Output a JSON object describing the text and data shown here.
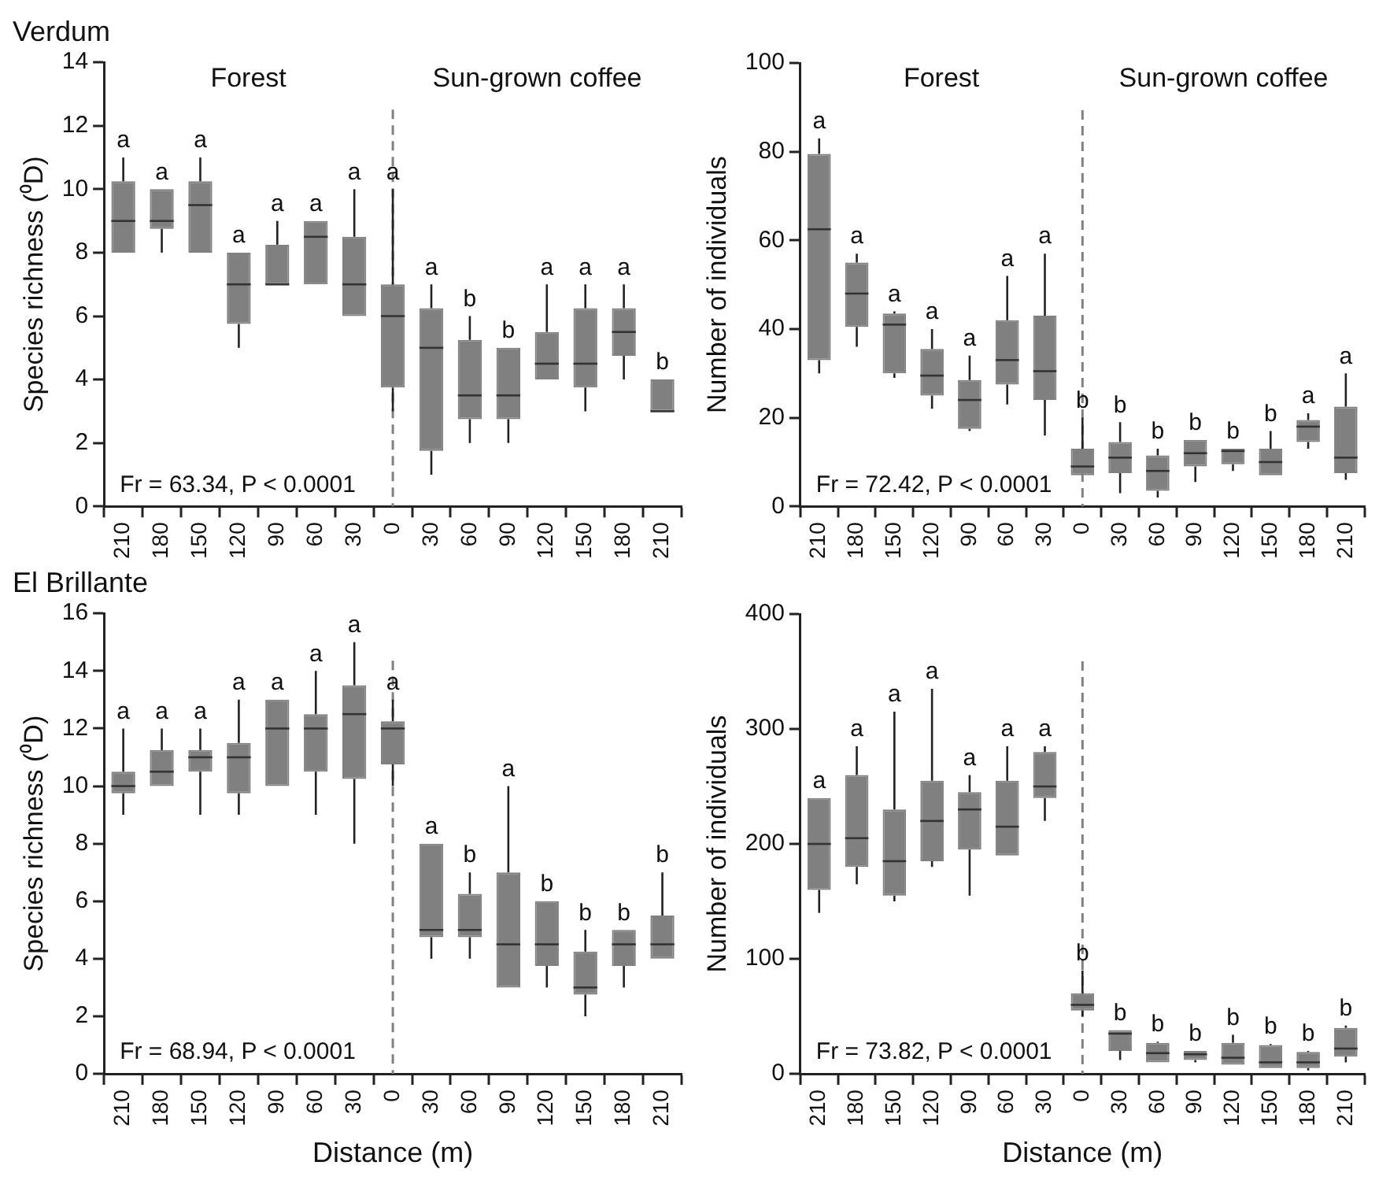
{
  "chart_data": [
    {
      "type": "box",
      "title": "Verdum",
      "ylabel": "Species richness (⁰D)",
      "color": "#808080",
      "categories": [
        "210",
        "180",
        "150",
        "120",
        "90",
        "60",
        "30",
        "0",
        "30",
        "60",
        "90",
        "120",
        "150",
        "180",
        "210"
      ],
      "boxes": [
        {
          "low": 8,
          "q1": 8,
          "median": 9,
          "q3": 10.25,
          "high": 11
        },
        {
          "low": 8,
          "q1": 8.75,
          "median": 9,
          "q3": 10,
          "high": 10
        },
        {
          "low": 8,
          "q1": 8,
          "median": 9.5,
          "q3": 10.25,
          "high": 11
        },
        {
          "low": 5,
          "q1": 5.75,
          "median": 7,
          "q3": 8,
          "high": 8
        },
        {
          "low": 7,
          "q1": 7,
          "median": 7,
          "q3": 8.25,
          "high": 9
        },
        {
          "low": 7,
          "q1": 7,
          "median": 8.5,
          "q3": 9,
          "high": 9
        },
        {
          "low": 6,
          "q1": 6,
          "median": 7,
          "q3": 8.5,
          "high": 10
        },
        {
          "low": 3,
          "q1": 3.75,
          "median": 6,
          "q3": 7,
          "high": 10
        },
        {
          "low": 1,
          "q1": 1.75,
          "median": 5,
          "q3": 6.25,
          "high": 7
        },
        {
          "low": 2,
          "q1": 2.75,
          "median": 3.5,
          "q3": 5.25,
          "high": 6
        },
        {
          "low": 2,
          "q1": 2.75,
          "median": 3.5,
          "q3": 5,
          "high": 5
        },
        {
          "low": 4,
          "q1": 4,
          "median": 4.5,
          "q3": 5.5,
          "high": 7
        },
        {
          "low": 3,
          "q1": 3.75,
          "median": 4.5,
          "q3": 6.25,
          "high": 7
        },
        {
          "low": 4,
          "q1": 4.75,
          "median": 5.5,
          "q3": 6.25,
          "high": 7
        },
        {
          "low": 3,
          "q1": 3,
          "median": 3,
          "q3": 4,
          "high": 4
        }
      ],
      "value_labels": [
        "a",
        "a",
        "a",
        "a",
        "a",
        "a",
        "a",
        "a",
        "a",
        "b",
        "b",
        "a",
        "a",
        "a",
        "b"
      ],
      "ylim": [
        0,
        14
      ],
      "yticks": [
        0,
        2,
        4,
        6,
        8,
        10,
        12,
        14
      ],
      "ref_lines": [
        {
          "axis": "x",
          "value": "0",
          "color": "#808080",
          "line_style": "dashed"
        }
      ],
      "annotations": [
        "Forest",
        "Sun-grown coffee",
        "Fr = 63.34, P < 0.0001"
      ]
    },
    {
      "type": "box",
      "ylabel": "Number of individuals",
      "color": "#808080",
      "categories": [
        "210",
        "180",
        "150",
        "120",
        "90",
        "60",
        "30",
        "0",
        "30",
        "60",
        "90",
        "120",
        "150",
        "180",
        "210"
      ],
      "boxes": [
        {
          "low": 30,
          "q1": 33,
          "median": 62.5,
          "q3": 79.5,
          "high": 83
        },
        {
          "low": 36,
          "q1": 40.5,
          "median": 48,
          "q3": 55,
          "high": 57
        },
        {
          "low": 29,
          "q1": 30,
          "median": 41,
          "q3": 43.5,
          "high": 44
        },
        {
          "low": 22,
          "q1": 25,
          "median": 29.5,
          "q3": 35.5,
          "high": 40
        },
        {
          "low": 17,
          "q1": 17.5,
          "median": 24,
          "q3": 28.5,
          "high": 34
        },
        {
          "low": 23,
          "q1": 27.5,
          "median": 33,
          "q3": 42,
          "high": 52
        },
        {
          "low": 16,
          "q1": 24,
          "median": 30.5,
          "q3": 43,
          "high": 57
        },
        {
          "low": 7,
          "q1": 7,
          "median": 9,
          "q3": 13,
          "high": 20
        },
        {
          "low": 3,
          "q1": 7.5,
          "median": 11,
          "q3": 14.5,
          "high": 19
        },
        {
          "low": 2,
          "q1": 3.5,
          "median": 8,
          "q3": 11.5,
          "high": 13
        },
        {
          "low": 5.5,
          "q1": 9,
          "median": 12,
          "q3": 15,
          "high": 15
        },
        {
          "low": 8,
          "q1": 9.5,
          "median": 12.5,
          "q3": 13,
          "high": 13
        },
        {
          "low": 7,
          "q1": 7,
          "median": 10,
          "q3": 13,
          "high": 17
        },
        {
          "low": 13,
          "q1": 14.5,
          "median": 18,
          "q3": 19.5,
          "high": 21
        },
        {
          "low": 6,
          "q1": 7.5,
          "median": 11,
          "q3": 22.5,
          "high": 30
        }
      ],
      "value_labels": [
        "a",
        "a",
        "a",
        "a",
        "a",
        "a",
        "a",
        "b",
        "b",
        "b",
        "b",
        "b",
        "b",
        "a",
        "a"
      ],
      "ylim": [
        0,
        100
      ],
      "yticks": [
        0,
        20,
        40,
        60,
        80,
        100
      ],
      "ref_lines": [
        {
          "axis": "x",
          "value": "0",
          "color": "#808080",
          "line_style": "dashed"
        }
      ],
      "annotations": [
        "Forest",
        "Sun-grown coffee",
        "Fr = 72.42, P < 0.0001"
      ]
    },
    {
      "type": "box",
      "title": "El Brillante",
      "ylabel": "Species richness (⁰D)",
      "xlabel": "Distance (m)",
      "color": "#808080",
      "categories": [
        "210",
        "180",
        "150",
        "120",
        "90",
        "60",
        "30",
        "0",
        "30",
        "60",
        "90",
        "120",
        "150",
        "180",
        "210"
      ],
      "boxes": [
        {
          "low": 9,
          "q1": 9.75,
          "median": 10,
          "q3": 10.5,
          "high": 12
        },
        {
          "low": 10,
          "q1": 10,
          "median": 10.5,
          "q3": 11.25,
          "high": 12
        },
        {
          "low": 9,
          "q1": 10.5,
          "median": 11,
          "q3": 11.25,
          "high": 12
        },
        {
          "low": 9,
          "q1": 9.75,
          "median": 11,
          "q3": 11.5,
          "high": 13
        },
        {
          "low": 10,
          "q1": 10,
          "median": 12,
          "q3": 13,
          "high": 13
        },
        {
          "low": 9,
          "q1": 10.5,
          "median": 12,
          "q3": 12.5,
          "high": 14
        },
        {
          "low": 8,
          "q1": 10.25,
          "median": 12.5,
          "q3": 13.5,
          "high": 15
        },
        {
          "low": 10,
          "q1": 10.75,
          "median": 12,
          "q3": 12.25,
          "high": 13
        },
        {
          "low": 4,
          "q1": 4.75,
          "median": 5,
          "q3": 8,
          "high": 8
        },
        {
          "low": 4,
          "q1": 4.75,
          "median": 5,
          "q3": 6.25,
          "high": 7
        },
        {
          "low": 3,
          "q1": 3,
          "median": 4.5,
          "q3": 7,
          "high": 10
        },
        {
          "low": 3,
          "q1": 3.75,
          "median": 4.5,
          "q3": 6,
          "high": 6
        },
        {
          "low": 2,
          "q1": 2.75,
          "median": 3,
          "q3": 4.25,
          "high": 5
        },
        {
          "low": 3,
          "q1": 3.75,
          "median": 4.5,
          "q3": 5,
          "high": 5
        },
        {
          "low": 4,
          "q1": 4,
          "median": 4.5,
          "q3": 5.5,
          "high": 7
        }
      ],
      "value_labels": [
        "a",
        "a",
        "a",
        "a",
        "a",
        "a",
        "a",
        "a",
        "a",
        "b",
        "a",
        "b",
        "b",
        "b",
        "b"
      ],
      "ylim": [
        0,
        16
      ],
      "yticks": [
        0,
        2,
        4,
        6,
        8,
        10,
        12,
        14,
        16
      ],
      "ref_lines": [
        {
          "axis": "x",
          "value": "0",
          "color": "#808080",
          "line_style": "dashed"
        }
      ],
      "annotations": [
        "Fr = 68.94, P < 0.0001"
      ]
    },
    {
      "type": "box",
      "ylabel": "Number of individuals",
      "xlabel": "Distance (m)",
      "color": "#808080",
      "categories": [
        "210",
        "180",
        "150",
        "120",
        "90",
        "60",
        "30",
        "0",
        "30",
        "60",
        "90",
        "120",
        "150",
        "180",
        "210"
      ],
      "boxes": [
        {
          "low": 140,
          "q1": 160,
          "median": 200,
          "q3": 240,
          "high": 240
        },
        {
          "low": 165,
          "q1": 180,
          "median": 205,
          "q3": 260,
          "high": 285
        },
        {
          "low": 150,
          "q1": 155,
          "median": 185,
          "q3": 230,
          "high": 315
        },
        {
          "low": 180,
          "q1": 185,
          "median": 220,
          "q3": 255,
          "high": 335
        },
        {
          "low": 155,
          "q1": 195,
          "median": 230,
          "q3": 245,
          "high": 260
        },
        {
          "low": 190,
          "q1": 190,
          "median": 215,
          "q3": 255,
          "high": 285
        },
        {
          "low": 220,
          "q1": 240,
          "median": 250,
          "q3": 280,
          "high": 285
        },
        {
          "low": 50,
          "q1": 55,
          "median": 60,
          "q3": 70,
          "high": 90
        },
        {
          "low": 12,
          "q1": 20,
          "median": 35,
          "q3": 38,
          "high": 38
        },
        {
          "low": 10,
          "q1": 10,
          "median": 18,
          "q3": 27,
          "high": 28
        },
        {
          "low": 10,
          "q1": 12,
          "median": 17,
          "q3": 20,
          "high": 20
        },
        {
          "low": 8,
          "q1": 8,
          "median": 14,
          "q3": 27,
          "high": 34
        },
        {
          "low": 5,
          "q1": 5,
          "median": 10,
          "q3": 25,
          "high": 26
        },
        {
          "low": 3,
          "q1": 5,
          "median": 10,
          "q3": 19,
          "high": 20
        },
        {
          "low": 10,
          "q1": 15,
          "median": 22,
          "q3": 40,
          "high": 42
        }
      ],
      "value_labels": [
        "a",
        "a",
        "a",
        "a",
        "a",
        "a",
        "a",
        "b",
        "b",
        "b",
        "b",
        "b",
        "b",
        "b",
        "b"
      ],
      "ylim": [
        0,
        400
      ],
      "yticks": [
        0,
        100,
        200,
        300,
        400
      ],
      "ref_lines": [
        {
          "axis": "x",
          "value": "0",
          "color": "#808080",
          "line_style": "dashed"
        }
      ],
      "annotations": [
        "Fr = 73.82, P < 0.0001"
      ]
    }
  ]
}
